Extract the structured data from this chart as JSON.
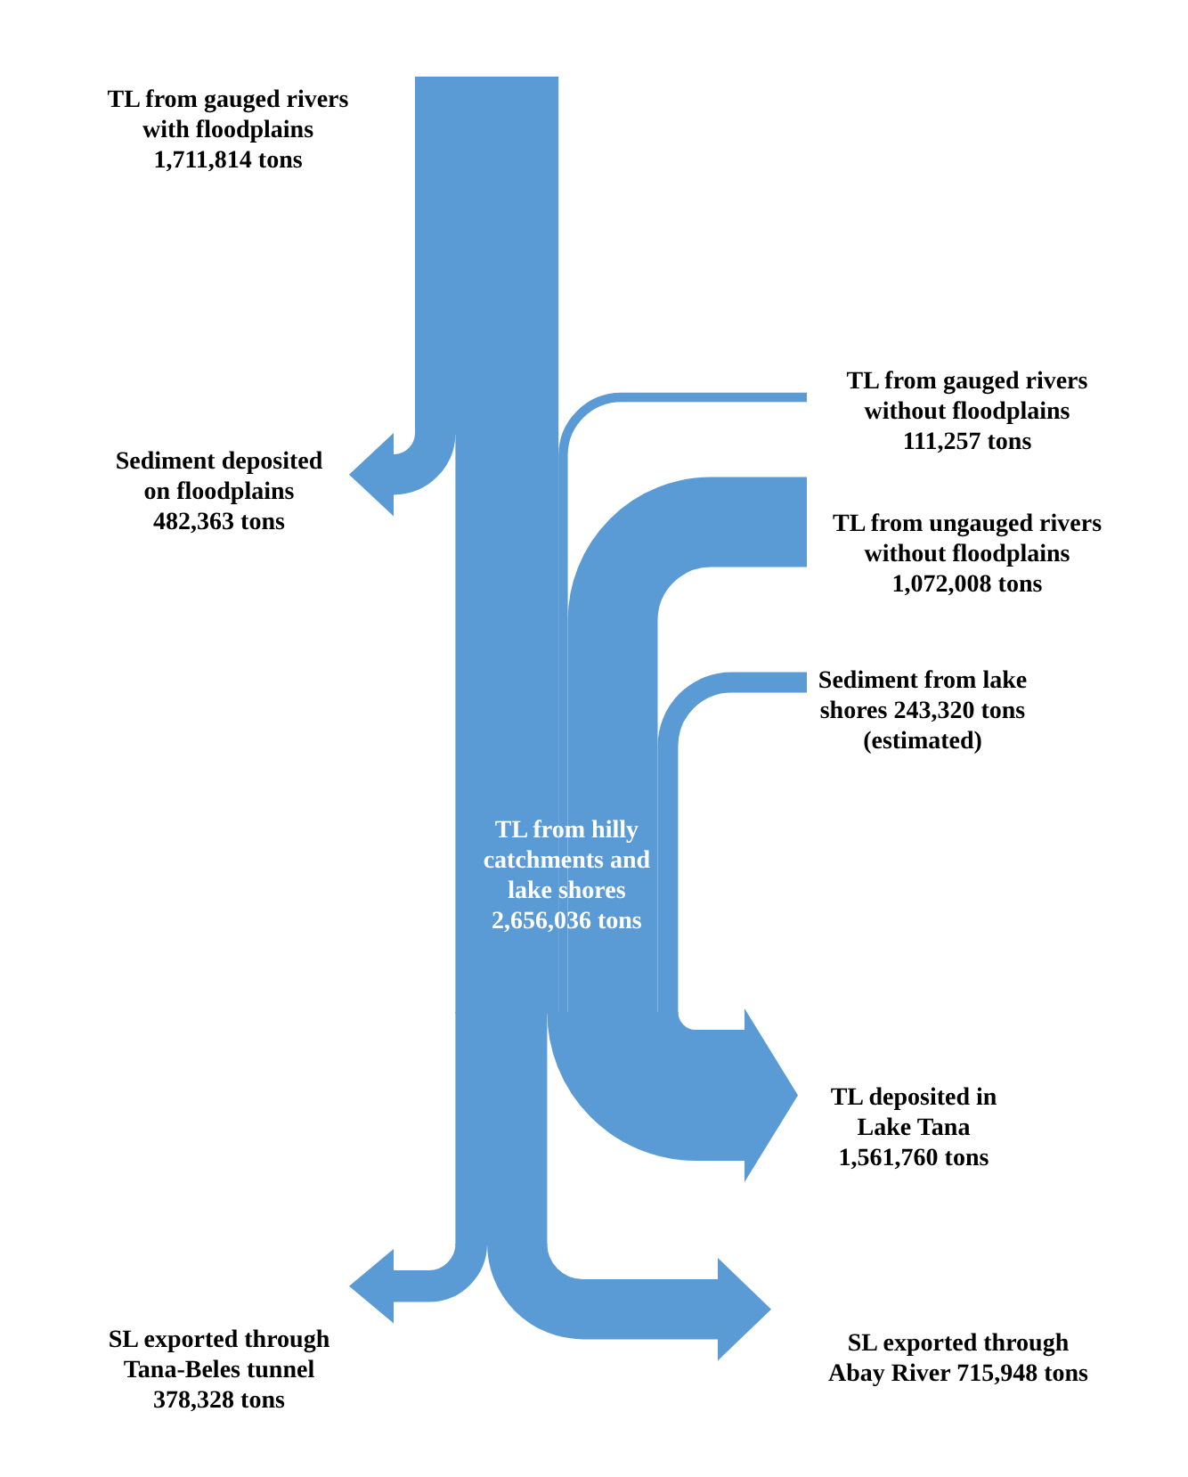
{
  "chart_data": {
    "type": "other",
    "color": "#5b9bd5",
    "categories": [
      "TL from gauged rivers with floodplains",
      "Sediment deposited on floodplains",
      "TL from gauged rivers without floodplains",
      "TL from ungauged rivers without floodplains",
      "Sediment from lake shores",
      "TL from hilly catchments and lake shores",
      "TL deposited in Lake Tana",
      "SL exported through Tana-Beles tunnel",
      "SL exported through Abay River"
    ],
    "values": [
      1711814,
      482363,
      111257,
      1072008,
      243320,
      2656036,
      1561760,
      378328,
      715948
    ],
    "value_labels": [
      "1,711,814 tons",
      "482,363 tons",
      "111,257 tons",
      "1,072,008 tons",
      "243,320 tons",
      "2,656,036 tons",
      "1,561,760 tons",
      "378,328 tons",
      "715,948 tons"
    ],
    "annotations": [
      "(estimated)"
    ]
  }
}
